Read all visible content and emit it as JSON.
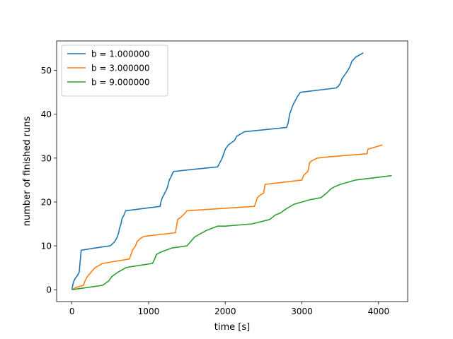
{
  "chart_data": {
    "type": "line",
    "title": "",
    "xlabel": "time [s]",
    "ylabel": "number of finished runs",
    "xlim": [
      -200,
      4380
    ],
    "ylim": [
      -2.7,
      56.7
    ],
    "xticks": [
      0,
      1000,
      2000,
      3000,
      4000
    ],
    "yticks": [
      0,
      10,
      20,
      30,
      40,
      50
    ],
    "grid": false,
    "legend_position": "top-left",
    "series": [
      {
        "name": "b = 1.000000",
        "color": "#1f77b4",
        "x": [
          0,
          10,
          25,
          40,
          60,
          80,
          95,
          100,
          105,
          110,
          120,
          300,
          500,
          530,
          560,
          590,
          600,
          610,
          620,
          640,
          650,
          660,
          680,
          700,
          1150,
          1160,
          1180,
          1210,
          1240,
          1270,
          1300,
          1310,
          1330,
          1350,
          1900,
          1930,
          1960,
          1980,
          2000,
          2020,
          2040,
          2080,
          2120,
          2150,
          2200,
          2250,
          2800,
          2820,
          2840,
          2860,
          2880,
          2910,
          2940,
          2960,
          2980,
          3450,
          3480,
          3500,
          3520,
          3560,
          3600,
          3630,
          3650,
          3700,
          3800
        ],
        "y": [
          0,
          1,
          2,
          2.5,
          3,
          3.5,
          4,
          5,
          6,
          7,
          9,
          9.5,
          10,
          10.5,
          11,
          12,
          12.5,
          13,
          14,
          15,
          16,
          16.5,
          17,
          18,
          19,
          20,
          21,
          22,
          23,
          25,
          26,
          26.5,
          27,
          27,
          28,
          29,
          30,
          31,
          32,
          32.5,
          33,
          33.5,
          34,
          35,
          35.5,
          36,
          37,
          38,
          40,
          41,
          42,
          43,
          44,
          44.5,
          45,
          46,
          46.5,
          47,
          48,
          49,
          50,
          51,
          52,
          53,
          54
        ]
      },
      {
        "name": "b = 3.000000",
        "color": "#ff7f0e",
        "x": [
          0,
          50,
          150,
          170,
          200,
          250,
          300,
          350,
          400,
          750,
          770,
          790,
          830,
          850,
          880,
          920,
          960,
          1350,
          1380,
          1420,
          1450,
          1500,
          2380,
          2400,
          2420,
          2450,
          2500,
          2520,
          3000,
          3020,
          3050,
          3080,
          3100,
          3140,
          3200,
          3300,
          3850,
          3860,
          4050
        ],
        "y": [
          0,
          0.5,
          1,
          2,
          3,
          4,
          5,
          5.5,
          6,
          7,
          8,
          9,
          10,
          11,
          11.5,
          12,
          12.2,
          13,
          16,
          16.5,
          17,
          18,
          19,
          20,
          21,
          21.5,
          22,
          24,
          25,
          26,
          26.5,
          27,
          29,
          29.5,
          30,
          30.2,
          31,
          32,
          33
        ]
      },
      {
        "name": "b = 9.000000",
        "color": "#2ca02c",
        "x": [
          0,
          400,
          480,
          520,
          560,
          600,
          650,
          700,
          750,
          1050,
          1080,
          1100,
          1150,
          1300,
          1500,
          1550,
          1600,
          1650,
          1750,
          1900,
          2000,
          2350,
          2580,
          2650,
          2720,
          2800,
          2900,
          3000,
          3100,
          3250,
          3320,
          3380,
          3430,
          3500,
          3700,
          4170
        ],
        "y": [
          0,
          1,
          2,
          3,
          3.5,
          4,
          4.5,
          5,
          5.2,
          6,
          7,
          8,
          8.5,
          9.5,
          10,
          11,
          12,
          12.5,
          13.5,
          14.5,
          14.5,
          15,
          16,
          17,
          17.5,
          18.5,
          19.5,
          20,
          20.5,
          21,
          22,
          23,
          23.5,
          24,
          25,
          26
        ]
      }
    ]
  }
}
